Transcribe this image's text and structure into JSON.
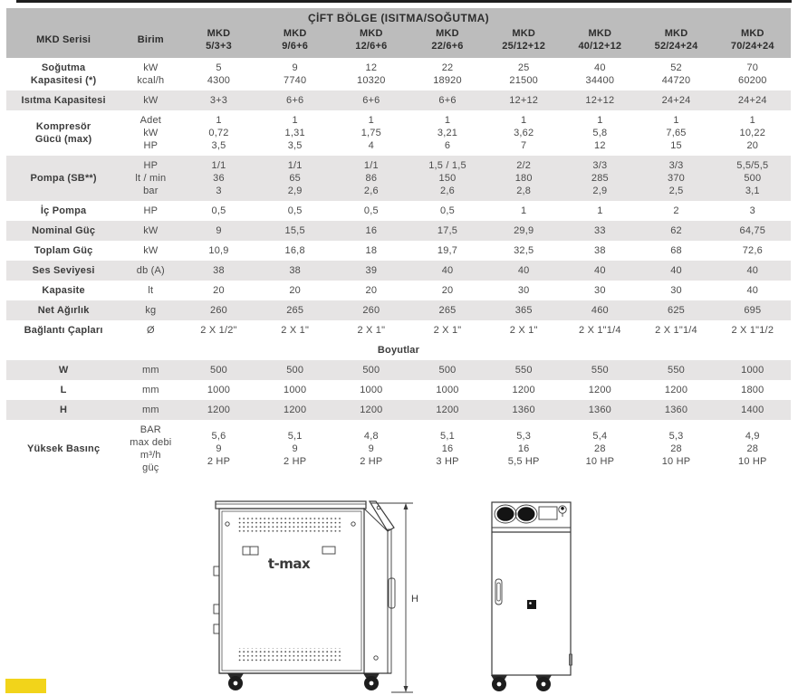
{
  "table": {
    "header_title": "ÇİFT BÖLGE (ISITMA/SOĞUTMA)",
    "col_label": "MKD Serisi",
    "col_unit": "Birim",
    "models": [
      "MKD\n5/3+3",
      "MKD\n9/6+6",
      "MKD\n12/6+6",
      "MKD\n22/6+6",
      "MKD\n25/12+12",
      "MKD\n40/12+12",
      "MKD\n52/24+24",
      "MKD\n70/24+24"
    ],
    "rows": [
      {
        "label": "Soğutma\nKapasitesi (*)",
        "unit": "kW\nkcal/h",
        "values": [
          "5\n4300",
          "9\n7740",
          "12\n10320",
          "22\n18920",
          "25\n21500",
          "40\n34400",
          "52\n44720",
          "70\n60200"
        ]
      },
      {
        "label": "Isıtma Kapasitesi",
        "unit": "kW",
        "values": [
          "3+3",
          "6+6",
          "6+6",
          "6+6",
          "12+12",
          "12+12",
          "24+24",
          "24+24"
        ]
      },
      {
        "label": "Kompresör\nGücü (max)",
        "unit": "Adet\nkW\nHP",
        "values": [
          "1\n0,72\n3,5",
          "1\n1,31\n3,5",
          "1\n1,75\n4",
          "1\n3,21\n6",
          "1\n3,62\n7",
          "1\n5,8\n12",
          "1\n7,65\n15",
          "1\n10,22\n20"
        ]
      },
      {
        "label": "Pompa (SB**)",
        "unit": "HP\nlt / min\nbar",
        "values": [
          "1/1\n36\n3",
          "1/1\n65\n2,9",
          "1/1\n86\n2,6",
          "1,5 / 1,5\n150\n2,6",
          "2/2\n180\n2,8",
          "3/3\n285\n2,9",
          "3/3\n370\n2,5",
          "5,5/5,5\n500\n3,1"
        ]
      },
      {
        "label": "İç Pompa",
        "unit": "HP",
        "values": [
          "0,5",
          "0,5",
          "0,5",
          "0,5",
          "1",
          "1",
          "2",
          "3"
        ]
      },
      {
        "label": "Nominal Güç",
        "unit": "kW",
        "values": [
          "9",
          "15,5",
          "16",
          "17,5",
          "29,9",
          "33",
          "62",
          "64,75"
        ]
      },
      {
        "label": "Toplam Güç",
        "unit": "kW",
        "values": [
          "10,9",
          "16,8",
          "18",
          "19,7",
          "32,5",
          "38",
          "68",
          "72,6"
        ]
      },
      {
        "label": "Ses Seviyesi",
        "unit": "db (A)",
        "values": [
          "38",
          "38",
          "39",
          "40",
          "40",
          "40",
          "40",
          "40"
        ]
      },
      {
        "label": "Kapasite",
        "unit": "lt",
        "values": [
          "20",
          "20",
          "20",
          "20",
          "30",
          "30",
          "30",
          "40"
        ]
      },
      {
        "label": "Net Ağırlık",
        "unit": "kg",
        "values": [
          "260",
          "265",
          "260",
          "265",
          "365",
          "460",
          "625",
          "695"
        ]
      },
      {
        "label": "Bağlantı Çapları",
        "unit": "Ø",
        "values": [
          "2 X 1/2\"",
          "2 X 1\"",
          "2 X 1\"",
          "2 X 1\"",
          "2 X 1\"",
          "2 X 1\"1/4",
          "2 X 1\"1/4",
          "2 X 1\"1/2"
        ]
      },
      {
        "section": "Boyutlar"
      },
      {
        "label": "W",
        "unit": "mm",
        "values": [
          "500",
          "500",
          "500",
          "500",
          "550",
          "550",
          "550",
          "1000"
        ]
      },
      {
        "label": "L",
        "unit": "mm",
        "values": [
          "1000",
          "1000",
          "1000",
          "1000",
          "1200",
          "1200",
          "1200",
          "1800"
        ]
      },
      {
        "label": "H",
        "unit": "mm",
        "values": [
          "1200",
          "1200",
          "1200",
          "1200",
          "1360",
          "1360",
          "1360",
          "1400"
        ]
      },
      {
        "label": "Yüksek Basınç",
        "unit": "BAR\nmax debi\nm³/h\ngüç",
        "values": [
          "5,6\n9\n2 HP",
          "5,1\n9\n2 HP",
          "4,8\n9\n2 HP",
          "5,1\n16\n3 HP",
          "5,3\n16\n5,5 HP",
          "5,4\n28\n10 HP",
          "5,3\n28\n10 HP",
          "4,9\n28\n10 HP"
        ]
      }
    ]
  },
  "drawings": {
    "logo_text": "t-max",
    "height_label": "H"
  },
  "colors": {
    "header_gray": "#bcbcbc",
    "row_gray": "#e6e4e4",
    "accent_yellow": "#F2D41A",
    "line_dark": "#3a3a3a"
  }
}
